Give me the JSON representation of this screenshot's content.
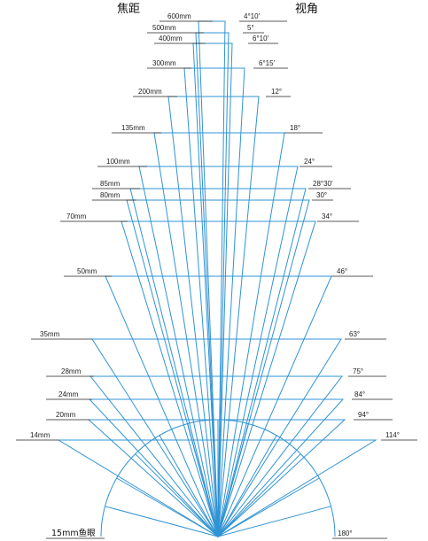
{
  "headers": {
    "focal_length": "焦距",
    "view_angle": "视角"
  },
  "colors": {
    "lines": "#2f93d4",
    "text": "#222222"
  },
  "lenses": [
    {
      "focal": "600mm",
      "angle": "4°10′"
    },
    {
      "focal": "500mm",
      "angle": "5°"
    },
    {
      "focal": "400mm",
      "angle": "6°10′"
    },
    {
      "focal": "300mm",
      "angle": "6°15′"
    },
    {
      "focal": "200mm",
      "angle": "12°"
    },
    {
      "focal": "135mm",
      "angle": "18°"
    },
    {
      "focal": "100mm",
      "angle": "24°"
    },
    {
      "focal": "85mm",
      "angle": "28°30′"
    },
    {
      "focal": "80mm",
      "angle": "30°"
    },
    {
      "focal": "70mm",
      "angle": "34°"
    },
    {
      "focal": "50mm",
      "angle": "46°"
    },
    {
      "focal": "35mm",
      "angle": "63°"
    },
    {
      "focal": "28mm",
      "angle": "75°"
    },
    {
      "focal": "24mm",
      "angle": "84°"
    },
    {
      "focal": "20mm",
      "angle": "94°"
    },
    {
      "focal": "14mm",
      "angle": "114°"
    }
  ],
  "fisheye": {
    "focal": "15mm鱼眼",
    "angle": "180°"
  }
}
